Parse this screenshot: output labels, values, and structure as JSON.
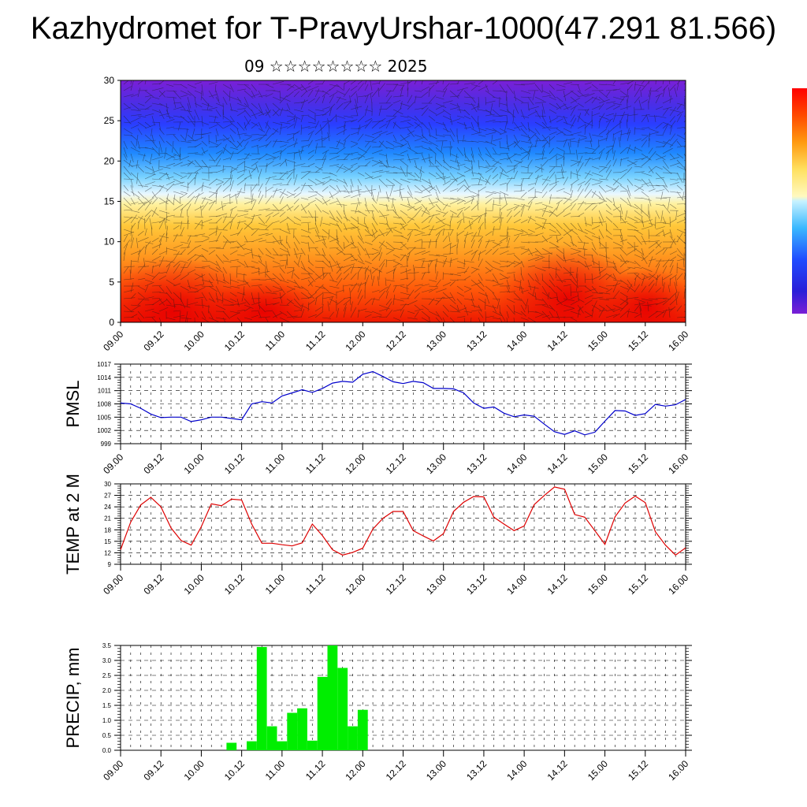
{
  "header": {
    "title": "Kazhydromet for T-PravyUrshar-1000(47.291 81.566)",
    "subtitle": "09 ☆☆☆☆☆☆☆☆ 2025"
  },
  "colors": {
    "pmsl_line": "#0000cc",
    "temp_line": "#dd0000",
    "precip_bar": "#00ee00",
    "colorbar": [
      "#7a1fd6",
      "#3b2fe0",
      "#1a3cff",
      "#1f7bff",
      "#32b4ff",
      "#9fe3ff",
      "#fff6a0",
      "#ffd54a",
      "#ffa21f",
      "#ff6a0a",
      "#ff2a00",
      "#d60000"
    ]
  },
  "chart_data": [
    {
      "type": "heatmap",
      "name": "upper-panel",
      "y_ticks": [
        "0",
        "5",
        "10",
        "15",
        "20",
        "25",
        "30"
      ],
      "ylim": [
        0,
        30
      ],
      "x_ticks": [
        "09.00",
        "09.12",
        "10.00",
        "10.12",
        "11.00",
        "11.12",
        "12.00",
        "12.12",
        "13.00",
        "13.12",
        "14.00",
        "14.12",
        "15.00",
        "15.12",
        "16.00"
      ]
    },
    {
      "type": "line",
      "name": "pmsl",
      "ylabel": "PMSL",
      "y_ticks": [
        "999",
        "1002",
        "1005",
        "1008",
        "1011",
        "1014",
        "1017"
      ],
      "ylim": [
        999,
        1017
      ],
      "x_ticks": [
        "09.00",
        "09.12",
        "10.00",
        "10.12",
        "11.00",
        "11.12",
        "12.00",
        "12.12",
        "13.00",
        "13.12",
        "14.00",
        "14.12",
        "15.00",
        "15.12",
        "16.00"
      ],
      "x": [
        0,
        3,
        6,
        9,
        12,
        15,
        18,
        21,
        24,
        27,
        30,
        33,
        36,
        39,
        42,
        45,
        48,
        51,
        54,
        57,
        60,
        63,
        66,
        69,
        72,
        75,
        78,
        81,
        84,
        87,
        90,
        93,
        96,
        99,
        102,
        105,
        108,
        111,
        114,
        117,
        120,
        123,
        126,
        129,
        132,
        135,
        138,
        141,
        144,
        147,
        150,
        153,
        156,
        159,
        162,
        165,
        168
      ],
      "values": [
        1008.2,
        1008.0,
        1007.0,
        1005.7,
        1004.9,
        1005.0,
        1005.0,
        1004.0,
        1004.4,
        1005.0,
        1005.0,
        1004.7,
        1004.4,
        1008.0,
        1008.5,
        1008.2,
        1009.8,
        1010.5,
        1011.2,
        1010.6,
        1011.5,
        1012.7,
        1013.1,
        1012.9,
        1014.7,
        1015.3,
        1014.2,
        1013.0,
        1012.6,
        1013.1,
        1012.8,
        1011.5,
        1011.5,
        1011.4,
        1010.5,
        1008.2,
        1007.0,
        1007.3,
        1005.9,
        1005.1,
        1005.5,
        1005.2,
        1003.4,
        1001.7,
        1001.1,
        1001.9,
        1001.0,
        1001.6,
        1004.1,
        1006.5,
        1006.4,
        1005.4,
        1005.8,
        1007.9,
        1007.5,
        1007.8,
        1009.0
      ]
    },
    {
      "type": "line",
      "name": "temp",
      "ylabel": "TEMP at 2 M",
      "y_ticks": [
        "9",
        "12",
        "15",
        "18",
        "21",
        "24",
        "27",
        "30"
      ],
      "ylim": [
        9,
        30
      ],
      "x_ticks": [
        "09.00",
        "09.12",
        "10.00",
        "10.12",
        "11.00",
        "11.12",
        "12.00",
        "12.12",
        "13.00",
        "13.12",
        "14.00",
        "14.12",
        "15.00",
        "15.12",
        "16.00"
      ],
      "x": [
        0,
        3,
        6,
        9,
        12,
        15,
        18,
        21,
        24,
        27,
        30,
        33,
        36,
        39,
        42,
        45,
        48,
        51,
        54,
        57,
        60,
        63,
        66,
        69,
        72,
        75,
        78,
        81,
        84,
        87,
        90,
        93,
        96,
        99,
        102,
        105,
        108,
        111,
        114,
        117,
        120,
        123,
        126,
        129,
        132,
        135,
        138,
        141,
        144,
        147,
        150,
        153,
        156,
        159,
        162,
        165,
        168
      ],
      "values": [
        12.8,
        20.0,
        24.5,
        26.5,
        24.0,
        18.5,
        15.2,
        14.0,
        18.8,
        24.8,
        24.3,
        26.0,
        25.8,
        19.5,
        14.5,
        14.5,
        14.1,
        13.8,
        14.6,
        19.5,
        16.5,
        12.8,
        11.4,
        12.1,
        13.2,
        18.2,
        21.0,
        22.8,
        22.8,
        17.8,
        16.4,
        15.1,
        17.0,
        22.8,
        25.2,
        26.7,
        26.6,
        21.3,
        19.5,
        17.8,
        19.0,
        24.6,
        27.0,
        29.2,
        28.6,
        22.0,
        21.3,
        17.8,
        14.2,
        21.4,
        25.0,
        26.8,
        25.1,
        17.5,
        14.0,
        11.4,
        13.3
      ]
    },
    {
      "type": "bar",
      "name": "precip",
      "ylabel": "PRECIP, mm",
      "y_ticks": [
        "0.0",
        "0.5",
        "1.0",
        "1.5",
        "2.0",
        "2.5",
        "3.0",
        "3.5"
      ],
      "ylim": [
        0,
        3.5
      ],
      "x_ticks": [
        "09.00",
        "09.12",
        "10.00",
        "10.12",
        "11.00",
        "11.12",
        "12.00",
        "12.12",
        "13.00",
        "13.12",
        "14.00",
        "14.12",
        "15.00",
        "15.12",
        "16.00"
      ],
      "x": [
        33,
        39,
        42,
        45,
        48,
        51,
        54,
        57,
        60,
        63,
        66,
        69,
        72
      ],
      "values": [
        0.25,
        0.3,
        3.45,
        0.8,
        0.3,
        1.25,
        1.4,
        0.32,
        2.45,
        3.5,
        2.75,
        0.8,
        1.35
      ]
    }
  ]
}
